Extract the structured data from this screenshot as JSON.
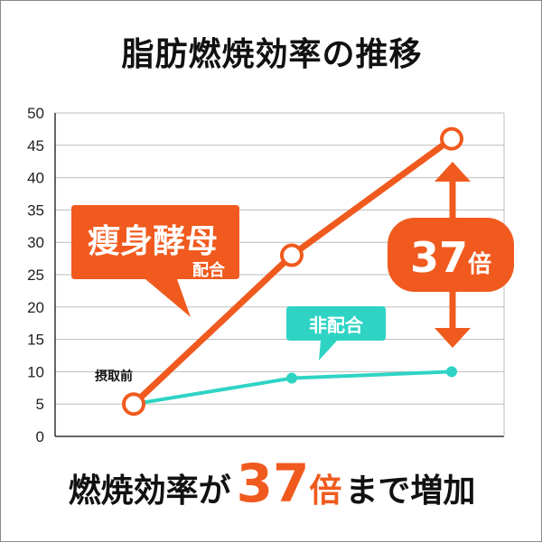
{
  "title": "脂肪燃焼効率の推移",
  "bottom_text": {
    "part1": "燃焼効率が",
    "number": "37",
    "unit": "倍",
    "part2": "まで増加"
  },
  "colors": {
    "highlight": "#f05a1e",
    "normal": "#2fd3c4",
    "grid": "#bdbdbd"
  },
  "chart_data": {
    "type": "line",
    "title": "脂肪燃焼効率の推移",
    "xlabel": "",
    "ylabel": "",
    "ylim": [
      0,
      50
    ],
    "yticks": [
      0,
      5,
      10,
      15,
      20,
      25,
      30,
      35,
      40,
      45,
      50
    ],
    "grid": true,
    "series": [
      {
        "name": "瘦身酵母配合",
        "x": [
          0,
          1,
          2
        ],
        "values": [
          5,
          28,
          46
        ]
      },
      {
        "name": "非配合",
        "x": [
          0,
          1,
          2
        ],
        "values": [
          5,
          9,
          10
        ]
      }
    ],
    "annotations": {
      "start_label": "摂取前",
      "callout_main": "瘦身酵母",
      "callout_sub": "配合",
      "callout_other": "非配合",
      "ratio_number": "37",
      "ratio_unit": "倍"
    }
  }
}
